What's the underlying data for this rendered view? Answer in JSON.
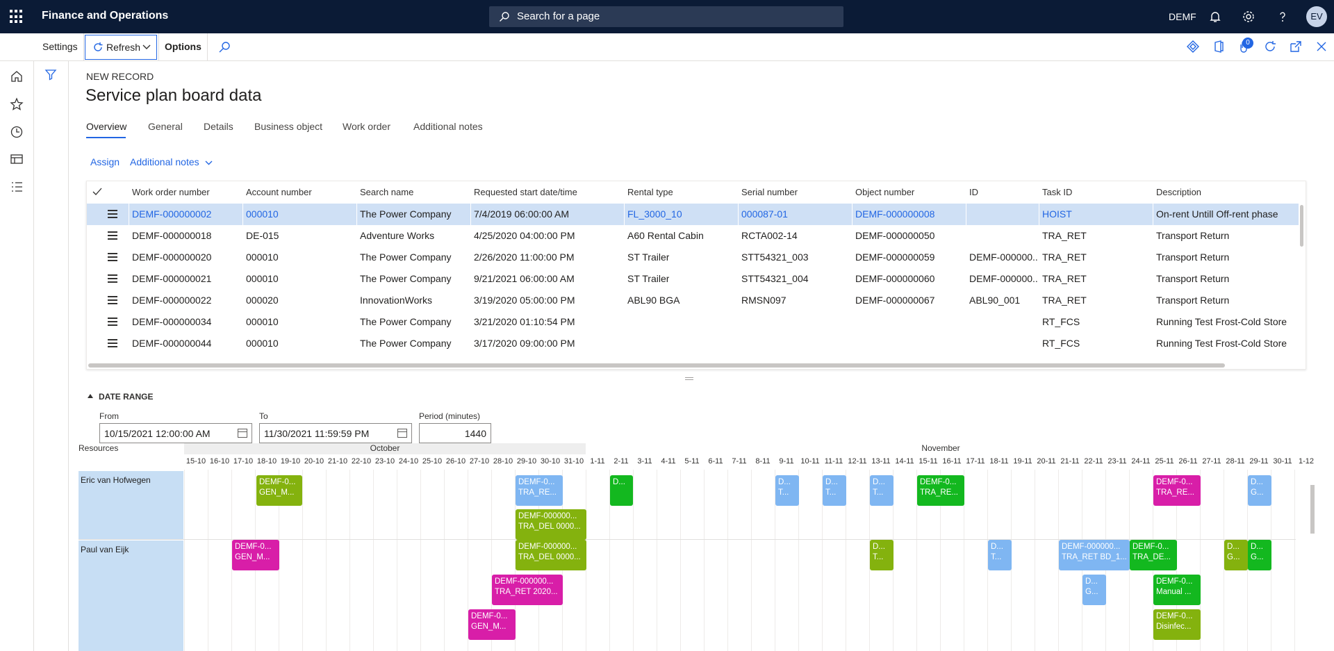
{
  "app": {
    "title": "Finance and Operations",
    "company": "DEMF",
    "avatar": "EV",
    "search_placeholder": "Search for a page"
  },
  "actionbar": {
    "settings": "Settings",
    "refresh": "Refresh",
    "options": "Options",
    "notification_count": "0"
  },
  "page": {
    "record_label": "NEW RECORD",
    "title": "Service plan board data"
  },
  "tabs": [
    "Overview",
    "General",
    "Details",
    "Business object",
    "Work order",
    "Additional notes"
  ],
  "actions": {
    "assign": "Assign",
    "additional_notes": "Additional notes"
  },
  "grid": {
    "columns": [
      "Work order number",
      "Account number",
      "Search name",
      "Requested start date/time",
      "Rental type",
      "Serial number",
      "Object number",
      "ID",
      "Task ID",
      "Description"
    ],
    "rows": [
      [
        "DEMF-000000002",
        "000010",
        "The Power Company",
        "7/4/2019 06:00:00 AM",
        "FL_3000_10",
        "000087-01",
        "DEMF-000000008",
        "",
        "HOIST",
        "On-rent Untill Off-rent phase"
      ],
      [
        "DEMF-000000018",
        "DE-015",
        "Adventure Works",
        "4/25/2020 04:00:00 PM",
        "A60 Rental Cabin",
        "RCTA002-14",
        "DEMF-000000050",
        "",
        "TRA_RET",
        "Transport Return"
      ],
      [
        "DEMF-000000020",
        "000010",
        "The Power Company",
        "2/26/2020 11:00:00 PM",
        "ST Trailer",
        "STT54321_003",
        "DEMF-000000059",
        "DEMF-000000...",
        "TRA_RET",
        "Transport Return"
      ],
      [
        "DEMF-000000021",
        "000010",
        "The Power Company",
        "9/21/2021 06:00:00 AM",
        "ST Trailer",
        "STT54321_004",
        "DEMF-000000060",
        "DEMF-000000...",
        "TRA_RET",
        "Transport Return"
      ],
      [
        "DEMF-000000022",
        "000020",
        "InnovationWorks",
        "3/19/2020 05:00:00 PM",
        "ABL90 BGA",
        "RMSN097",
        "DEMF-000000067",
        "ABL90_001",
        "TRA_RET",
        "Transport Return"
      ],
      [
        "DEMF-000000034",
        "000010",
        "The Power Company",
        "3/21/2020 01:10:54 PM",
        "",
        "",
        "",
        "",
        "RT_FCS",
        "Running Test Frost-Cold Store"
      ],
      [
        "DEMF-000000044",
        "000010",
        "The Power Company",
        "3/17/2020 09:00:00 PM",
        "",
        "",
        "",
        "",
        "RT_FCS",
        "Running Test Frost-Cold Store"
      ]
    ]
  },
  "date_range": {
    "header": "DATE RANGE",
    "from_label": "From",
    "from_value": "10/15/2021 12:00:00 AM",
    "to_label": "To",
    "to_value": "11/30/2021 11:59:59 PM",
    "period_label": "Period (minutes)",
    "period_value": "1440"
  },
  "board": {
    "resources_label": "Resources",
    "months": [
      "October",
      "November"
    ],
    "days": [
      "15-10",
      "16-10",
      "17-10",
      "18-10",
      "19-10",
      "20-10",
      "21-10",
      "22-10",
      "23-10",
      "24-10",
      "25-10",
      "26-10",
      "27-10",
      "28-10",
      "29-10",
      "30-10",
      "31-10",
      "1-11",
      "2-11",
      "3-11",
      "4-11",
      "5-11",
      "6-11",
      "7-11",
      "8-11",
      "9-11",
      "10-11",
      "11-11",
      "12-11",
      "13-11",
      "14-11",
      "15-11",
      "16-11",
      "17-11",
      "18-11",
      "19-11",
      "20-11",
      "21-11",
      "22-11",
      "23-11",
      "24-11",
      "25-11",
      "26-11",
      "27-11",
      "28-11",
      "29-11",
      "30-11",
      "1-12"
    ],
    "resources": [
      "Eric van Hofwegen",
      "Paul van Eijk"
    ],
    "colors": {
      "green": "#84b20e",
      "brightgreen": "#13b81f",
      "blue": "#7fb6f2",
      "pink": "#d81ea8"
    },
    "bars": [
      {
        "l1": "DEMF-0...",
        "l2": "GEN_M..."
      },
      {
        "l1": "DEMF-0...",
        "l2": "TRA_RE..."
      },
      {
        "l1": "D...",
        "l2": ""
      },
      {
        "l1": "D...",
        "l2": "T..."
      },
      {
        "l1": "D...",
        "l2": "T..."
      },
      {
        "l1": "D...",
        "l2": "T..."
      },
      {
        "l1": "DEMF-0...",
        "l2": "TRA_RE..."
      },
      {
        "l1": "DEMF-0...",
        "l2": "TRA_RE..."
      },
      {
        "l1": "D...",
        "l2": "G..."
      },
      {
        "l1": "DEMF-000000...",
        "l2": "TRA_DEL 0000..."
      },
      {
        "l1": "DEMF-0...",
        "l2": "GEN_M..."
      },
      {
        "l1": "DEMF-000000...",
        "l2": "TRA_DEL 0000..."
      },
      {
        "l1": "D...",
        "l2": "T..."
      },
      {
        "l1": "D...",
        "l2": "T..."
      },
      {
        "l1": "DEMF-000000...",
        "l2": "TRA_RET BD_1..."
      },
      {
        "l1": "DEMF-0...",
        "l2": "TRA_DE..."
      },
      {
        "l1": "D...",
        "l2": "G..."
      },
      {
        "l1": "D...",
        "l2": "G..."
      },
      {
        "l1": "DEMF-000000...",
        "l2": "TRA_RET 2020..."
      },
      {
        "l1": "D...",
        "l2": "G..."
      },
      {
        "l1": "DEMF-0...",
        "l2": "Manual ..."
      },
      {
        "l1": "DEMF-0...",
        "l2": "GEN_M..."
      },
      {
        "l1": "DEMF-0...",
        "l2": "Disinfec..."
      }
    ]
  }
}
